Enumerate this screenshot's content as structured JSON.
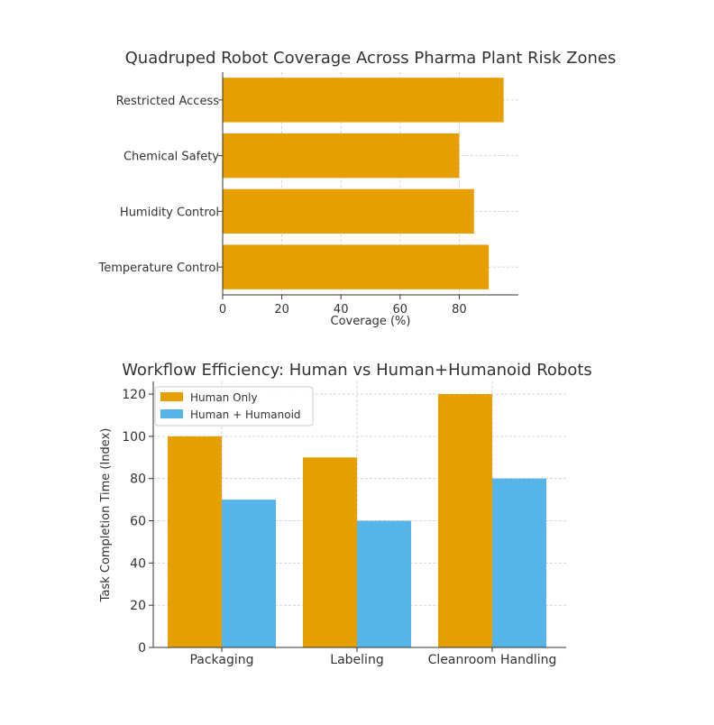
{
  "colors": {
    "orange": "#E69F00",
    "blue": "#56B4E9",
    "grid": "#cccccc",
    "axis": "#333333",
    "text": "#333333"
  },
  "chart_data": [
    {
      "type": "bar",
      "orientation": "horizontal",
      "title": "Quadruped Robot Coverage Across Pharma Plant Risk Zones",
      "xlabel": "Coverage (%)",
      "ylabel": "",
      "categories": [
        "Temperature Control",
        "Humidity Control",
        "Chemical Safety",
        "Restricted Access"
      ],
      "values": [
        90,
        85,
        80,
        95
      ],
      "xlim": [
        0,
        100
      ],
      "xticks": [
        0,
        20,
        40,
        60,
        80
      ],
      "grid": true,
      "color": "#E69F00"
    },
    {
      "type": "bar",
      "orientation": "vertical",
      "title": "Workflow Efficiency: Human vs Human+Humanoid Robots",
      "xlabel": "",
      "ylabel": "Task Completion Time (Index)",
      "categories": [
        "Packaging",
        "Labeling",
        "Cleanroom Handling"
      ],
      "series": [
        {
          "name": "Human Only",
          "values": [
            100,
            90,
            120
          ],
          "color": "#E69F00"
        },
        {
          "name": "Human + Humanoid",
          "values": [
            70,
            60,
            80
          ],
          "color": "#56B4E9"
        }
      ],
      "ylim": [
        0,
        126
      ],
      "yticks": [
        0,
        20,
        40,
        60,
        80,
        100,
        120
      ],
      "grid": true,
      "legend": "top-left"
    }
  ]
}
